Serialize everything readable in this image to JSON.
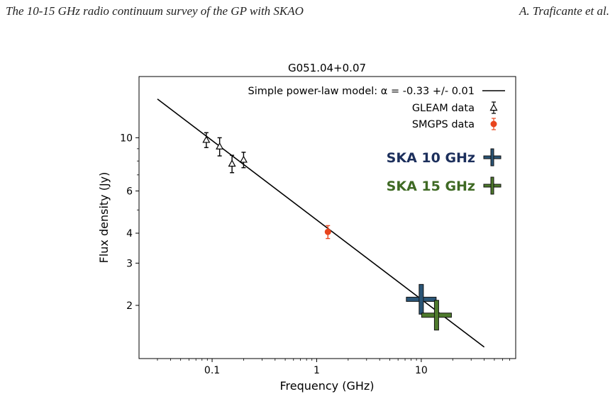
{
  "header": {
    "left": "The 10-15 GHz radio continuum survey of the GP with SKAO",
    "right": "A. Traficante et al."
  },
  "chart_data": {
    "type": "scatter",
    "title": "G051.04+0.07",
    "xlabel": "Frequency (GHz)",
    "ylabel": "Flux density (Jy)",
    "xscale": "log",
    "yscale": "log",
    "xlim": [
      0.02,
      80
    ],
    "ylim": [
      1.2,
      18
    ],
    "xticks": [
      {
        "value": 0.1,
        "label": "0.1"
      },
      {
        "value": 1,
        "label": "1"
      },
      {
        "value": 10,
        "label": "10"
      }
    ],
    "yticks": [
      {
        "value": 2,
        "label": "2"
      },
      {
        "value": 3,
        "label": "3"
      },
      {
        "value": 4,
        "label": "4"
      },
      {
        "value": 6,
        "label": "6"
      },
      {
        "value": 10,
        "label": "10"
      }
    ],
    "grid": false,
    "legend_position": "top-right",
    "model": {
      "name": "Simple power-law model: α = -0.33 +/- 0.01",
      "x": [
        0.03,
        40
      ],
      "y": [
        14.5,
        1.34
      ],
      "color": "#000000"
    },
    "series": [
      {
        "name": "GLEAM data",
        "marker": "open-triangle",
        "color": "#000000",
        "points": [
          {
            "x": 0.088,
            "y": 9.8,
            "err": 0.7
          },
          {
            "x": 0.118,
            "y": 9.2,
            "err": 0.8
          },
          {
            "x": 0.155,
            "y": 7.8,
            "err": 0.65
          },
          {
            "x": 0.2,
            "y": 8.1,
            "err": 0.6
          }
        ]
      },
      {
        "name": "SMGPS data",
        "marker": "circle",
        "color": "#e8451e",
        "points": [
          {
            "x": 1.28,
            "y": 4.05,
            "err": 0.25
          }
        ]
      }
    ],
    "ska_points": [
      {
        "name": "SKA 10 GHz",
        "x": 10,
        "y": 2.12,
        "color": "#2a5577",
        "label_color": "#1c2f5c"
      },
      {
        "name": "SKA 15 GHz",
        "x": 14,
        "y": 1.82,
        "color": "#4e7a2c",
        "label_color": "#3f6a24"
      }
    ]
  }
}
